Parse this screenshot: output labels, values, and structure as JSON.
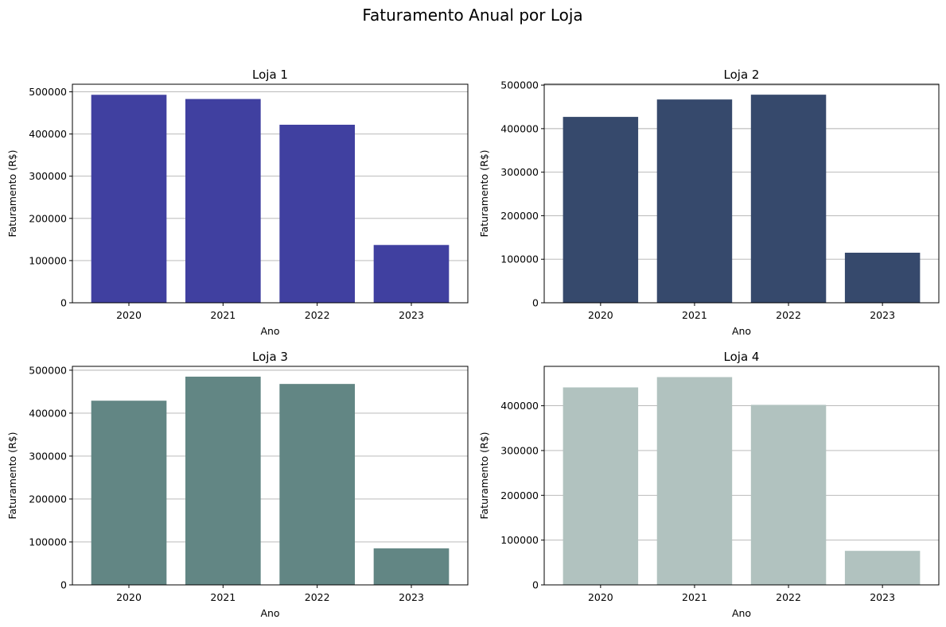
{
  "figure": {
    "title": "Faturamento Anual por Loja"
  },
  "chart_data": [
    {
      "type": "bar",
      "title": "Loja 1",
      "xlabel": "Ano",
      "ylabel": "Faturamento (R$)",
      "categories": [
        "2020",
        "2021",
        "2022",
        "2023"
      ],
      "values": [
        493000,
        483000,
        422000,
        137000
      ],
      "ylim": [
        0,
        518000
      ],
      "yticks": [
        0,
        100000,
        200000,
        300000,
        400000,
        500000
      ],
      "grid": "y",
      "color": "#4040a0"
    },
    {
      "type": "bar",
      "title": "Loja 2",
      "xlabel": "Ano",
      "ylabel": "Faturamento (R$)",
      "categories": [
        "2020",
        "2021",
        "2022",
        "2023"
      ],
      "values": [
        427000,
        467000,
        478000,
        115000
      ],
      "ylim": [
        0,
        502000
      ],
      "yticks": [
        0,
        100000,
        200000,
        300000,
        400000,
        500000
      ],
      "grid": "y",
      "color": "#36496c"
    },
    {
      "type": "bar",
      "title": "Loja 3",
      "xlabel": "Ano",
      "ylabel": "Faturamento (R$)",
      "categories": [
        "2020",
        "2021",
        "2022",
        "2023"
      ],
      "values": [
        429000,
        485000,
        468000,
        85000
      ],
      "ylim": [
        0,
        509000
      ],
      "yticks": [
        0,
        100000,
        200000,
        300000,
        400000,
        500000
      ],
      "grid": "y",
      "color": "#628684"
    },
    {
      "type": "bar",
      "title": "Loja 4",
      "xlabel": "Ano",
      "ylabel": "Faturamento (R$)",
      "categories": [
        "2020",
        "2021",
        "2022",
        "2023"
      ],
      "values": [
        441000,
        464000,
        402000,
        76000
      ],
      "ylim": [
        0,
        488000
      ],
      "yticks": [
        0,
        100000,
        200000,
        300000,
        400000
      ],
      "grid": "y",
      "color": "#b1c2bf"
    }
  ]
}
